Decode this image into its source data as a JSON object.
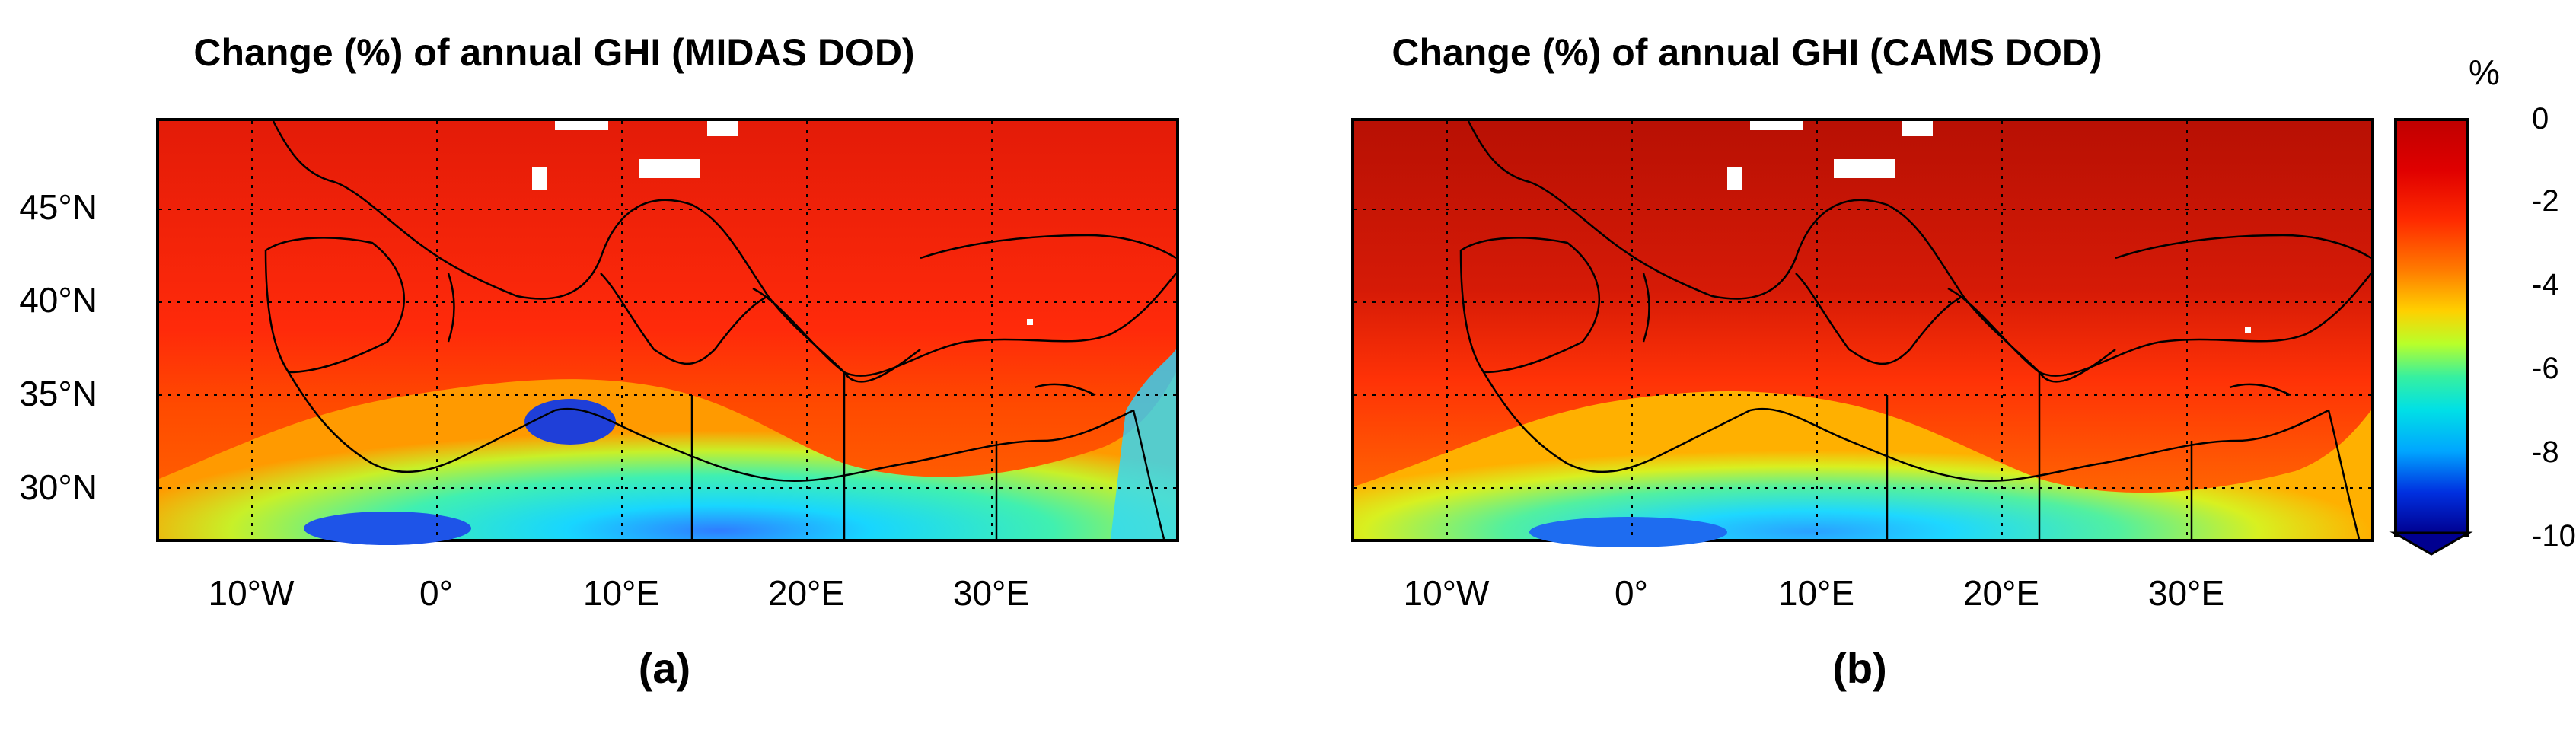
{
  "panels": [
    {
      "id": "a",
      "title": "Change (%) of annual GHI (MIDAS DOD)",
      "label": "(a)"
    },
    {
      "id": "b",
      "title": "Change (%) of annual GHI (CAMS DOD)",
      "label": "(b)"
    }
  ],
  "axes": {
    "x_ticks": [
      "10°W",
      "0°",
      "10°E",
      "20°E",
      "30°E"
    ],
    "y_ticks": [
      "45°N",
      "40°N",
      "35°N",
      "30°N"
    ]
  },
  "colorbar": {
    "unit": "%",
    "ticks": [
      "0",
      "-2",
      "-4",
      "-6",
      "-8",
      "-10"
    ],
    "range": [
      -10,
      0
    ]
  },
  "map_extent": {
    "lon": [
      -15,
      40
    ],
    "lat": [
      27,
      49.5
    ]
  }
}
